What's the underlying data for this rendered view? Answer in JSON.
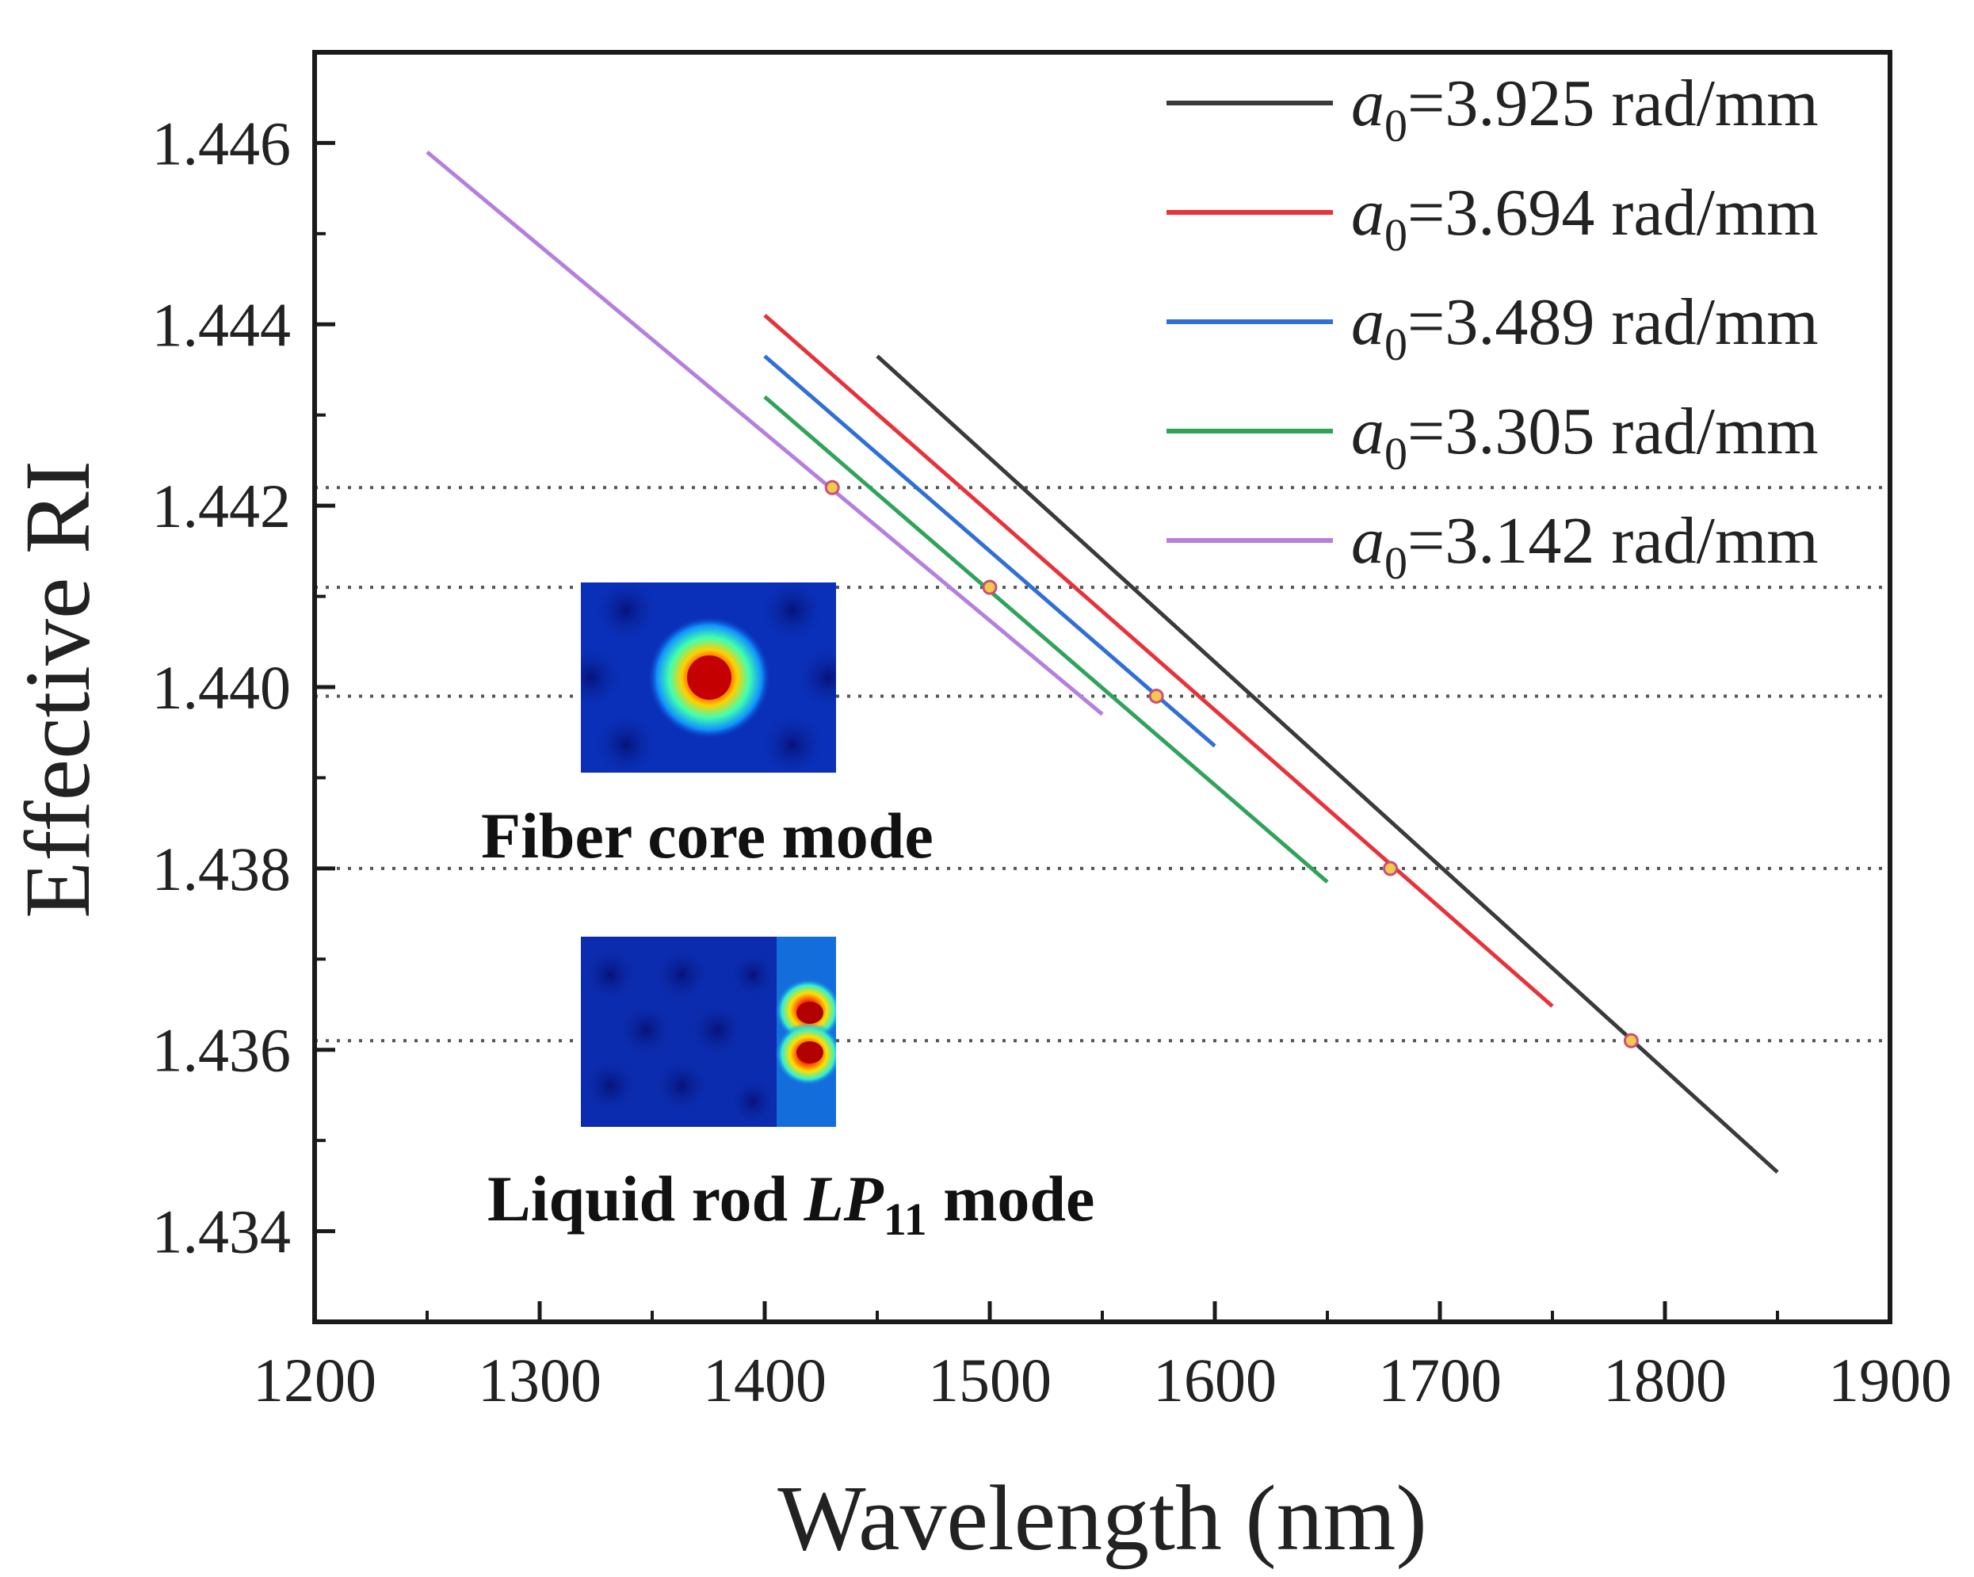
{
  "chart_data": {
    "type": "line",
    "xlabel": "Wavelength (nm)",
    "ylabel": "Effective RI",
    "xlim": [
      1200,
      1900
    ],
    "ylim": [
      1.433,
      1.447
    ],
    "x_ticks": [
      "1200",
      "1300",
      "1400",
      "1500",
      "1600",
      "1700",
      "1800",
      "1900"
    ],
    "y_ticks": [
      "1.434",
      "1.436",
      "1.438",
      "1.440",
      "1.442",
      "1.444",
      "1.446"
    ],
    "grid": false,
    "legend_position": "top-right",
    "series": [
      {
        "name": "a0=3.925 rad/mm",
        "symbol": "a",
        "subscript": "0",
        "rest": "=3.925 rad/mm",
        "color": "#3a3a3a",
        "x": [
          1450,
          1850
        ],
        "y": [
          1.44365,
          1.43465
        ]
      },
      {
        "name": "a0=3.694 rad/mm",
        "symbol": "a",
        "subscript": "0",
        "rest": "=3.694 rad/mm",
        "color": "#e8323a",
        "x": [
          1400,
          1750
        ],
        "y": [
          1.4441,
          1.43648
        ]
      },
      {
        "name": "a0=3.489 rad/mm",
        "symbol": "a",
        "subscript": "0",
        "rest": "=3.489 rad/mm",
        "color": "#2f6fd6",
        "x": [
          1400,
          1600
        ],
        "y": [
          1.44365,
          1.43935
        ]
      },
      {
        "name": "a0=3.305 rad/mm",
        "symbol": "a",
        "subscript": "0",
        "rest": "=3.305 rad/mm",
        "color": "#2fa35a",
        "x": [
          1400,
          1650
        ],
        "y": [
          1.4432,
          1.43785
        ]
      },
      {
        "name": "a0=3.142 rad/mm",
        "symbol": "a",
        "subscript": "0",
        "rest": "=3.142 rad/mm",
        "color": "#b57fe0",
        "x": [
          1250,
          1550
        ],
        "y": [
          1.4459,
          1.4397
        ]
      }
    ],
    "reference_lines_y": [
      1.4422,
      1.4411,
      1.4399,
      1.438,
      1.4361
    ],
    "crossing_points": [
      {
        "x": 1430,
        "y": 1.4422
      },
      {
        "x": 1500,
        "y": 1.4411
      },
      {
        "x": 1574,
        "y": 1.4399
      },
      {
        "x": 1678,
        "y": 1.438
      },
      {
        "x": 1785,
        "y": 1.4361
      }
    ],
    "marker_color": "#f2c94c",
    "marker_edge": "#c8507a",
    "insets": [
      {
        "caption": "Fiber core mode"
      },
      {
        "caption_prefix": "Liquid rod ",
        "caption_italic": "LP",
        "caption_sub": "11",
        "caption_suffix": " mode"
      }
    ]
  }
}
